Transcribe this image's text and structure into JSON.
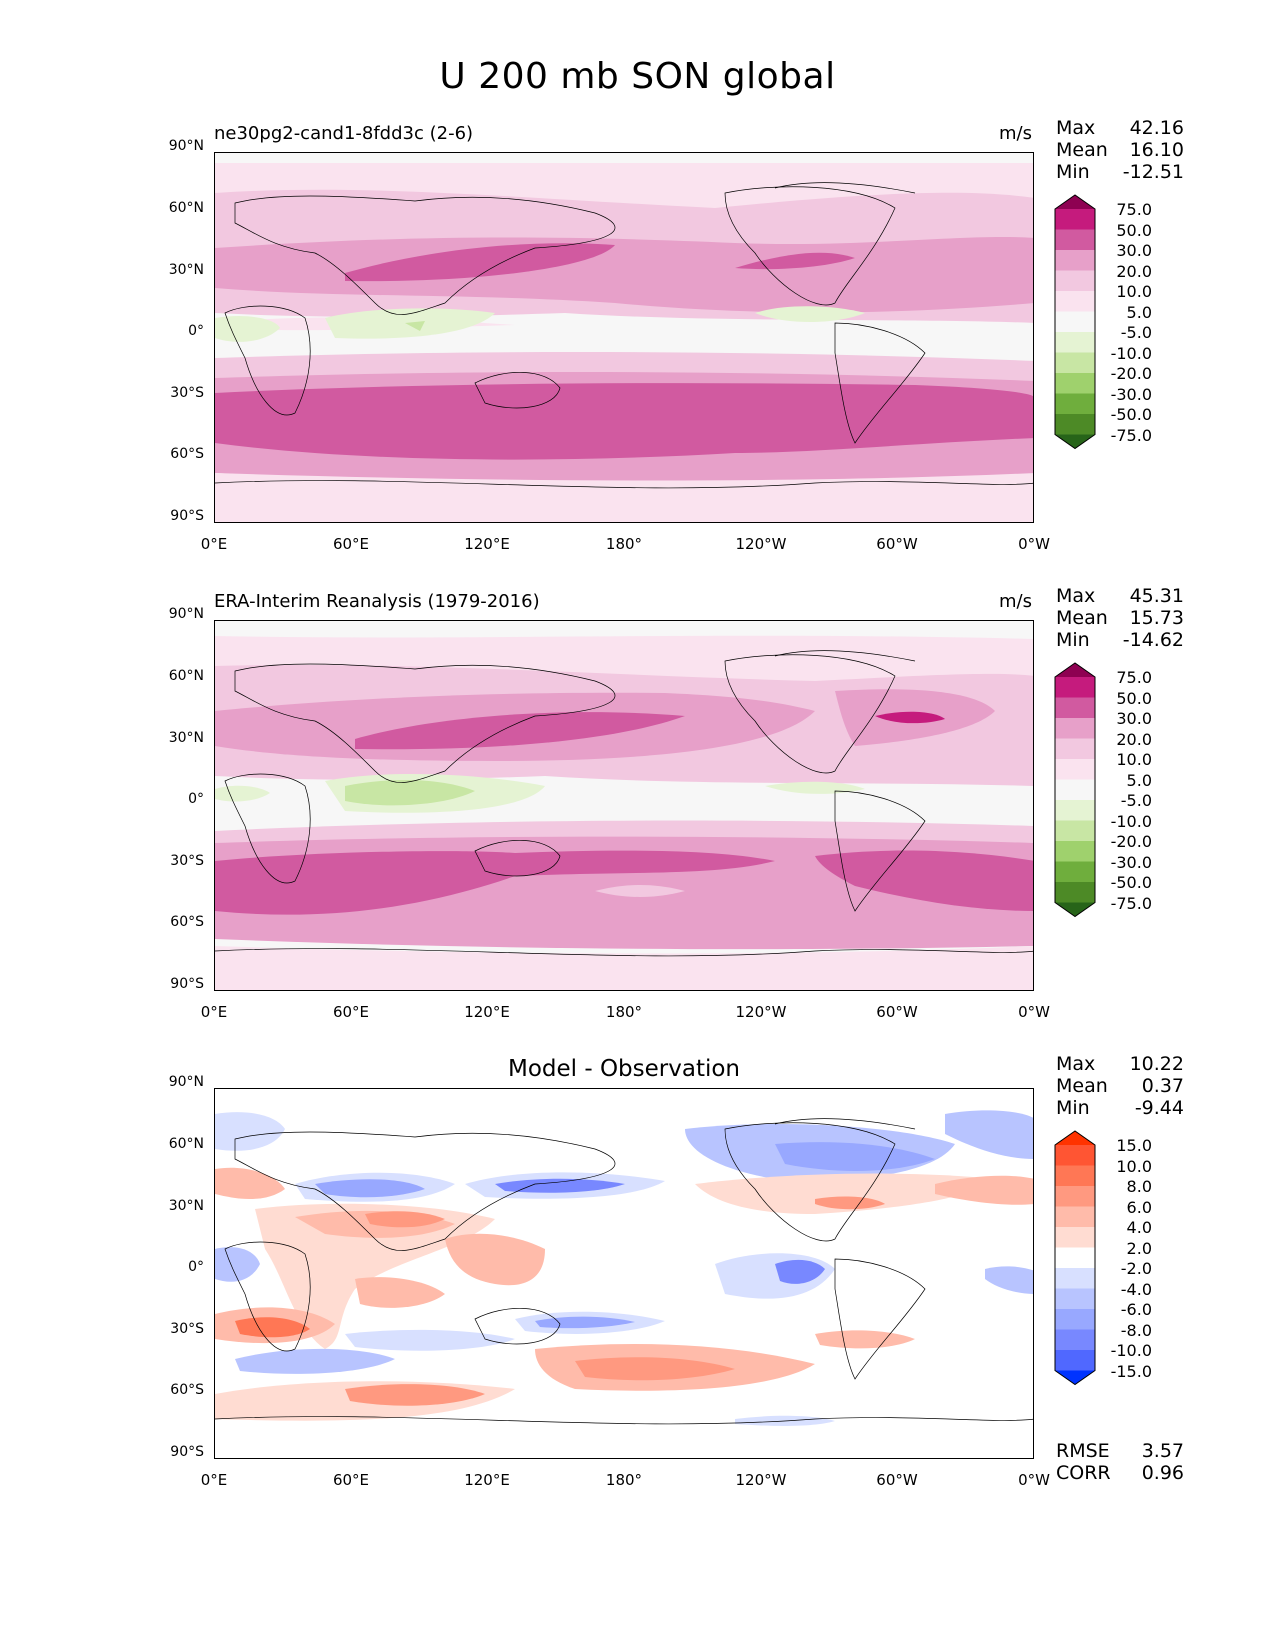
{
  "figure": {
    "title": "U 200 mb SON global"
  },
  "axes": {
    "lat_ticks": [
      "90°N",
      "60°N",
      "30°N",
      "0°",
      "30°S",
      "60°S",
      "90°S"
    ],
    "lon_ticks": [
      "0°E",
      "60°E",
      "120°E",
      "180°",
      "120°W",
      "60°W",
      "0°W"
    ]
  },
  "panels": [
    {
      "id": "test",
      "title": "ne30pg2-cand1-8fdd3c (2-6)",
      "units": "m/s",
      "stats": {
        "max_label": "Max",
        "max": "42.16",
        "mean_label": "Mean",
        "mean": "16.10",
        "min_label": "Min",
        "min": "-12.51"
      },
      "colorbar": {
        "levels": [
          "75.0",
          "50.0",
          "30.0",
          "20.0",
          "10.0",
          "5.0",
          "-5.0",
          "-10.0",
          "-20.0",
          "-30.0",
          "-50.0",
          "-75.0"
        ],
        "colors": [
          "#8e0152",
          "#c51b7d",
          "#d15aa0",
          "#e7a0c9",
          "#f2c8e0",
          "#fae3ef",
          "#f7f7f7",
          "#e5f3d3",
          "#c8e6a4",
          "#9fd16d",
          "#6fae3d",
          "#4d8a26",
          "#276419"
        ]
      }
    },
    {
      "id": "reference",
      "title": "ERA-Interim Reanalysis (1979-2016)",
      "units": "m/s",
      "stats": {
        "max_label": "Max",
        "max": "45.31",
        "mean_label": "Mean",
        "mean": "15.73",
        "min_label": "Min",
        "min": "-14.62"
      },
      "colorbar": {
        "levels": [
          "75.0",
          "50.0",
          "30.0",
          "20.0",
          "10.0",
          "5.0",
          "-5.0",
          "-10.0",
          "-20.0",
          "-30.0",
          "-50.0",
          "-75.0"
        ],
        "colors": [
          "#8e0152",
          "#c51b7d",
          "#d15aa0",
          "#e7a0c9",
          "#f2c8e0",
          "#fae3ef",
          "#f7f7f7",
          "#e5f3d3",
          "#c8e6a4",
          "#9fd16d",
          "#6fae3d",
          "#4d8a26",
          "#276419"
        ]
      }
    },
    {
      "id": "diff",
      "title": "Model - Observation",
      "units": "",
      "stats": {
        "max_label": "Max",
        "max": "10.22",
        "mean_label": "Mean",
        "mean": "0.37",
        "min_label": "Min",
        "min": "-9.44"
      },
      "metrics": {
        "rmse_label": "RMSE",
        "rmse": "3.57",
        "corr_label": "CORR",
        "corr": "0.96"
      },
      "colorbar": {
        "levels": [
          "15.0",
          "10.0",
          "8.0",
          "6.0",
          "4.0",
          "2.0",
          "-2.0",
          "-4.0",
          "-6.0",
          "-8.0",
          "-10.0",
          "-15.0"
        ],
        "colors": [
          "#ff3300",
          "#ff5533",
          "#ff7755",
          "#ff9980",
          "#ffbbaa",
          "#ffdcd2",
          "#ffffff",
          "#d8e0ff",
          "#b8c4ff",
          "#98a8ff",
          "#7888ff",
          "#5068ff",
          "#0033ff"
        ]
      }
    }
  ]
}
